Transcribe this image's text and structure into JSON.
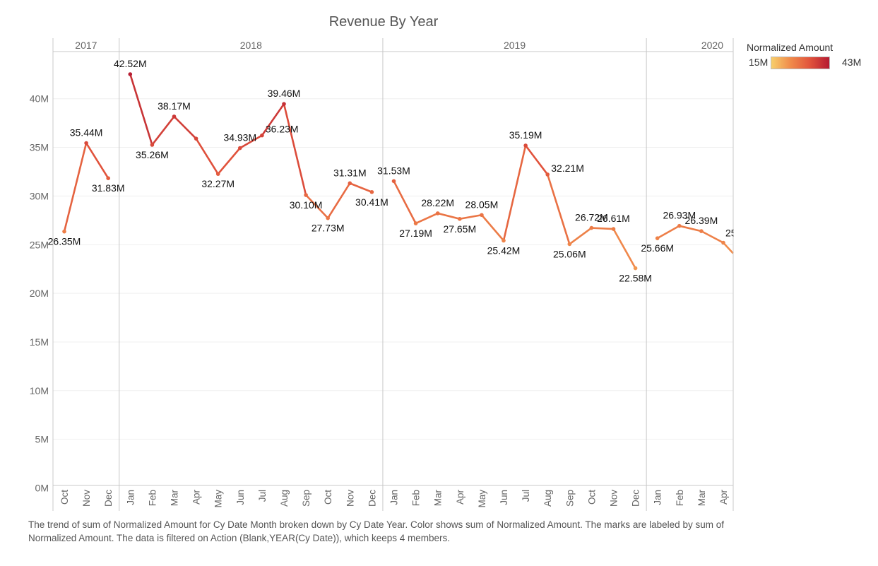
{
  "title": "Revenue By Year",
  "caption": "The trend of sum of Normalized Amount for Cy Date Month broken down by Cy Date Year.  Color shows sum of Normalized Amount.  The marks are labeled by sum of Normalized Amount. The data is filtered on Action (Blank,YEAR(Cy Date)), which keeps 4 members.",
  "legend": {
    "title": "Normalized Amount",
    "min_label": "15M",
    "max_label": "43M",
    "min_value": 15,
    "max_value": 43,
    "colors": [
      "#f7cf6c",
      "#f08a4b",
      "#e1533c",
      "#b51b32"
    ]
  },
  "chart_data": {
    "type": "line",
    "title": "Revenue By Year",
    "ylabel": "",
    "xlabel": "",
    "ylim": [
      0,
      45
    ],
    "yticks": [
      0,
      5,
      10,
      15,
      20,
      25,
      30,
      35,
      40
    ],
    "ytick_labels": [
      "0M",
      "5M",
      "10M",
      "15M",
      "20M",
      "25M",
      "30M",
      "35M",
      "40M"
    ],
    "grid": true,
    "legend_placement": "top-right",
    "panels": [
      {
        "year": "2017",
        "months": [
          "Oct",
          "Nov",
          "Dec"
        ],
        "values": [
          26.35,
          35.44,
          31.83
        ],
        "labels": [
          "26.35M",
          "35.44M",
          "31.83M"
        ]
      },
      {
        "year": "2018",
        "months": [
          "Jan",
          "Feb",
          "Mar",
          "Apr",
          "May",
          "Jun",
          "Jul",
          "Aug",
          "Sep",
          "Oct",
          "Nov",
          "Dec"
        ],
        "values": [
          42.52,
          35.26,
          38.17,
          35.9,
          32.27,
          34.93,
          36.23,
          39.46,
          30.1,
          27.73,
          31.31,
          30.41
        ],
        "labels": [
          "42.52M",
          "35.26M",
          "38.17M",
          "",
          "32.27M",
          "34.93M",
          "36.23M",
          "39.46M",
          "30.10M",
          "27.73M",
          "31.31M",
          "30.41M"
        ]
      },
      {
        "year": "2019",
        "months": [
          "Jan",
          "Feb",
          "Mar",
          "Apr",
          "May",
          "Jun",
          "Jul",
          "Aug",
          "Sep",
          "Oct",
          "Nov",
          "Dec"
        ],
        "values": [
          31.53,
          27.19,
          28.22,
          27.65,
          28.05,
          25.42,
          35.19,
          32.21,
          25.06,
          26.72,
          26.61,
          22.58
        ],
        "labels": [
          "31.53M",
          "27.19M",
          "28.22M",
          "27.65M",
          "28.05M",
          "25.42M",
          "35.19M",
          "32.21M",
          "25.06M",
          "26.72M",
          "26.61M",
          "22.58M"
        ]
      },
      {
        "year": "2020",
        "months": [
          "Jan",
          "Feb",
          "Mar",
          "Apr"
        ],
        "values": [
          25.66,
          26.93,
          26.39,
          25.2
        ],
        "labels": [
          "25.66M",
          "26.93M",
          "26.39M",
          "25"
        ],
        "trailing_value": 24.1
      }
    ]
  }
}
